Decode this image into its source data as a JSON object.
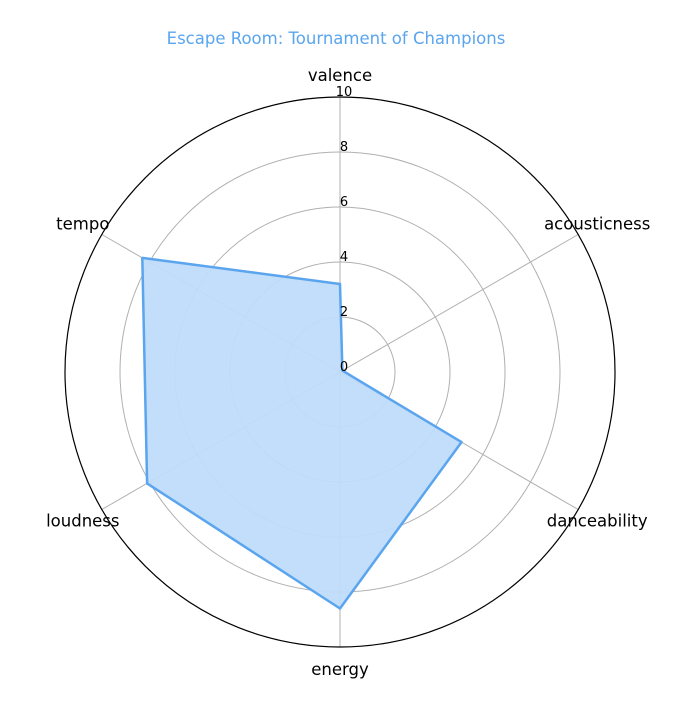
{
  "chart_data": {
    "type": "radar",
    "title": "Escape Room: Tournament of Champions",
    "categories": [
      "valence",
      "acousticness",
      "danceability",
      "energy",
      "loudness",
      "tempo"
    ],
    "series": [
      {
        "values": [
          3.2,
          0.1,
          5.1,
          8.6,
          8.1,
          8.3
        ]
      }
    ],
    "rlim": [
      0,
      10
    ],
    "rticks": [
      "0",
      "2",
      "4",
      "6",
      "8",
      "10"
    ],
    "grid": true,
    "colors": {
      "title": "#5aa5ee",
      "line": "#5aa5ee",
      "fill": "#bfdcfa"
    }
  }
}
